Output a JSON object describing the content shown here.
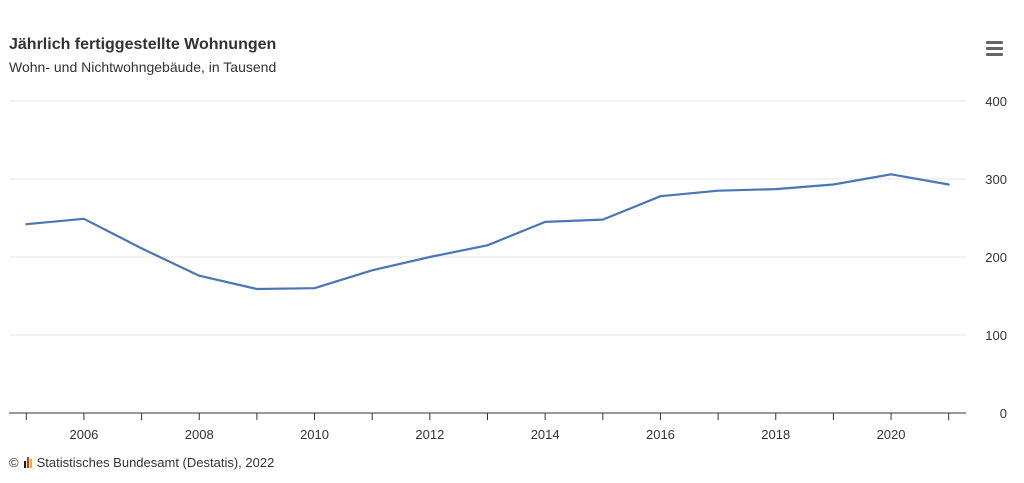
{
  "header": {
    "title": "Jährlich fertiggestellte Wohnungen",
    "subtitle": "Wohn- und Nichtwohngebäude, in Tausend"
  },
  "menu": {
    "icon": "hamburger-menu-icon"
  },
  "credits": {
    "copyright": "©",
    "text": "Statistisches Bundesamt (Destatis), 2022",
    "logo_colors": [
      "#1a1a1a",
      "#d8272a",
      "#f2b705"
    ]
  },
  "colors": {
    "line": "#4a77b4",
    "grid": "#e6e6e6",
    "axis": "#333333"
  },
  "chart_data": {
    "type": "line",
    "title": "Jährlich fertiggestellte Wohnungen",
    "subtitle": "Wohn- und Nichtwohngebäude, in Tausend",
    "xlabel": "",
    "ylabel": "",
    "x": [
      2005,
      2006,
      2007,
      2008,
      2009,
      2010,
      2011,
      2012,
      2013,
      2014,
      2015,
      2016,
      2017,
      2018,
      2019,
      2020,
      2021
    ],
    "series": [
      {
        "values": [
          242,
          249,
          211,
          176,
          159,
          160,
          183,
          200,
          215,
          245,
          248,
          278,
          285,
          287,
          293,
          306,
          293
        ]
      }
    ],
    "xlim": [
      2004.7,
      2021.3
    ],
    "ylim": [
      0,
      400
    ],
    "x_ticks": [
      2006,
      2008,
      2010,
      2012,
      2014,
      2016,
      2018,
      2020
    ],
    "x_tick_labels": [
      "2006",
      "2008",
      "2010",
      "2012",
      "2014",
      "2016",
      "2018",
      "2020"
    ],
    "y_ticks": [
      0,
      100,
      200,
      300,
      400
    ],
    "y_tick_labels": [
      "0",
      "100",
      "200",
      "300",
      "400"
    ],
    "y_axis_side": "right",
    "grid": true,
    "legend": "none"
  }
}
